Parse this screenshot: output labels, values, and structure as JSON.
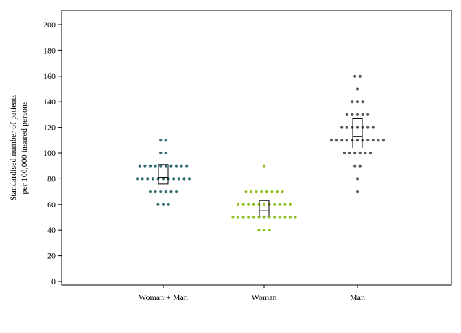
{
  "chart_data": {
    "type": "scatter",
    "subtype": "dot-plot-with-box",
    "title": "",
    "xlabel": "",
    "ylabel_lines": [
      "Standardised number of patients",
      "per 100,000 insured persons"
    ],
    "ylim": [
      0,
      212
    ],
    "yticks": [
      0,
      20,
      40,
      60,
      80,
      100,
      120,
      140,
      160,
      180,
      200
    ],
    "categories": [
      "Woman + Man",
      "Woman",
      "Man"
    ],
    "grid": false,
    "legend": "none",
    "series": [
      {
        "color": "#2e6b6e",
        "rows": [
          {
            "value": 110,
            "count": 2
          },
          {
            "value": 100,
            "count": 2
          },
          {
            "value": 90,
            "count": 10
          },
          {
            "value": 80,
            "count": 11
          },
          {
            "value": 70,
            "count": 6
          },
          {
            "value": 60,
            "count": 3
          }
        ],
        "box": {
          "q1": 76,
          "median": 81,
          "q3": 91
        }
      },
      {
        "color": "#8bbf1c",
        "rows": [
          {
            "value": 90,
            "count": 1
          },
          {
            "value": 70,
            "count": 8
          },
          {
            "value": 60,
            "count": 11
          },
          {
            "value": 50,
            "count": 13
          },
          {
            "value": 40,
            "count": 3
          }
        ],
        "box": {
          "q1": 51,
          "median": 55,
          "q3": 63
        }
      },
      {
        "color": "#575757",
        "rows": [
          {
            "value": 160,
            "count": 2
          },
          {
            "value": 150,
            "count": 1
          },
          {
            "value": 140,
            "count": 3
          },
          {
            "value": 130,
            "count": 5
          },
          {
            "value": 120,
            "count": 7
          },
          {
            "value": 110,
            "count": 11
          },
          {
            "value": 100,
            "count": 6
          },
          {
            "value": 90,
            "count": 2
          },
          {
            "value": 80,
            "count": 1
          },
          {
            "value": 70,
            "count": 1
          }
        ],
        "box": {
          "q1": 104,
          "median": 113,
          "q3": 127
        }
      }
    ]
  }
}
